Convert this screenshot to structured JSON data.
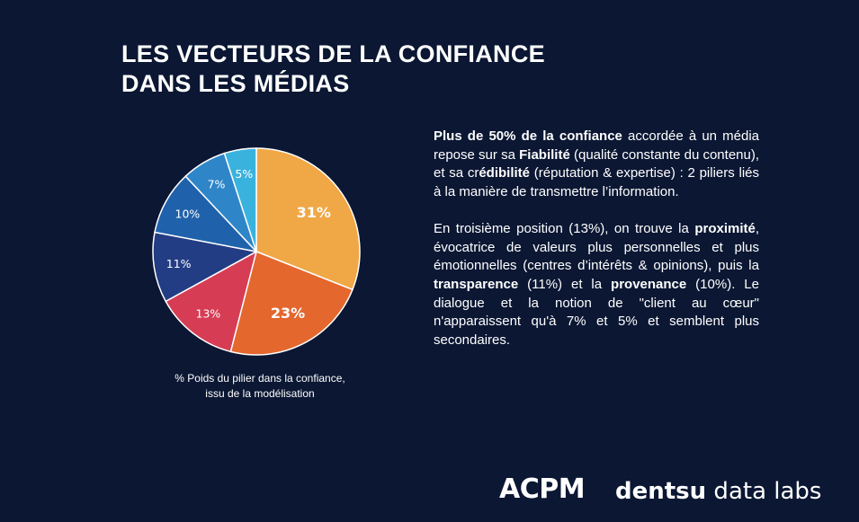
{
  "title": {
    "line1": "LES VECTEURS DE LA CONFIANCE",
    "line2": "DANS LES MÉDIAS"
  },
  "chart_data": {
    "type": "pie",
    "categories": [
      "",
      "",
      "",
      "",
      "",
      "",
      ""
    ],
    "values": [
      31,
      23,
      13,
      11,
      10,
      7,
      5
    ],
    "labels": [
      "31%",
      "23%",
      "13%",
      "11%",
      "10%",
      "7%",
      "5%"
    ],
    "colors": [
      "#f0a745",
      "#e4672e",
      "#d63d54",
      "#233d85",
      "#1f62ab",
      "#2e86c8",
      "#3ab2de"
    ],
    "label_colors": [
      "#ffffff",
      "#ffffff",
      "#ffffff",
      "#ffffff",
      "#ffffff",
      "#ffffff",
      "#ffffff"
    ]
  },
  "caption": {
    "line1": "% Poids du pilier dans la confiance,",
    "line2": "issu de la modélisation"
  },
  "paragraph1": {
    "bold1": "Plus de 50% de la confiance",
    "text1": " accordée à un média repose sur sa ",
    "bold2": "Fiabilité",
    "text2": " (qualité constante du contenu), et sa cr",
    "bold3": "édibilité",
    "text3": " (réputation & expertise) : 2 piliers liés à la manière de transmettre l’information."
  },
  "paragraph2": {
    "text1": "En troisième position (13%), on trouve la ",
    "bold1": "proximité",
    "text2": ", évocatrice de valeurs plus personnelles et plus émotionnelles (centres d’intérêts & opinions), puis la ",
    "bold2": "transparence",
    "text3": " (11%) et la ",
    "bold3": "provenance",
    "text4": " (10%). Le dialogue et la notion de \"client au cœur\" n'apparaissent qu'à 7% et 5% et semblent plus secondaires."
  },
  "logos": {
    "acpm": "ACPM",
    "dentsu_bold": "dentsu",
    "dentsu_rest": " data labs"
  }
}
